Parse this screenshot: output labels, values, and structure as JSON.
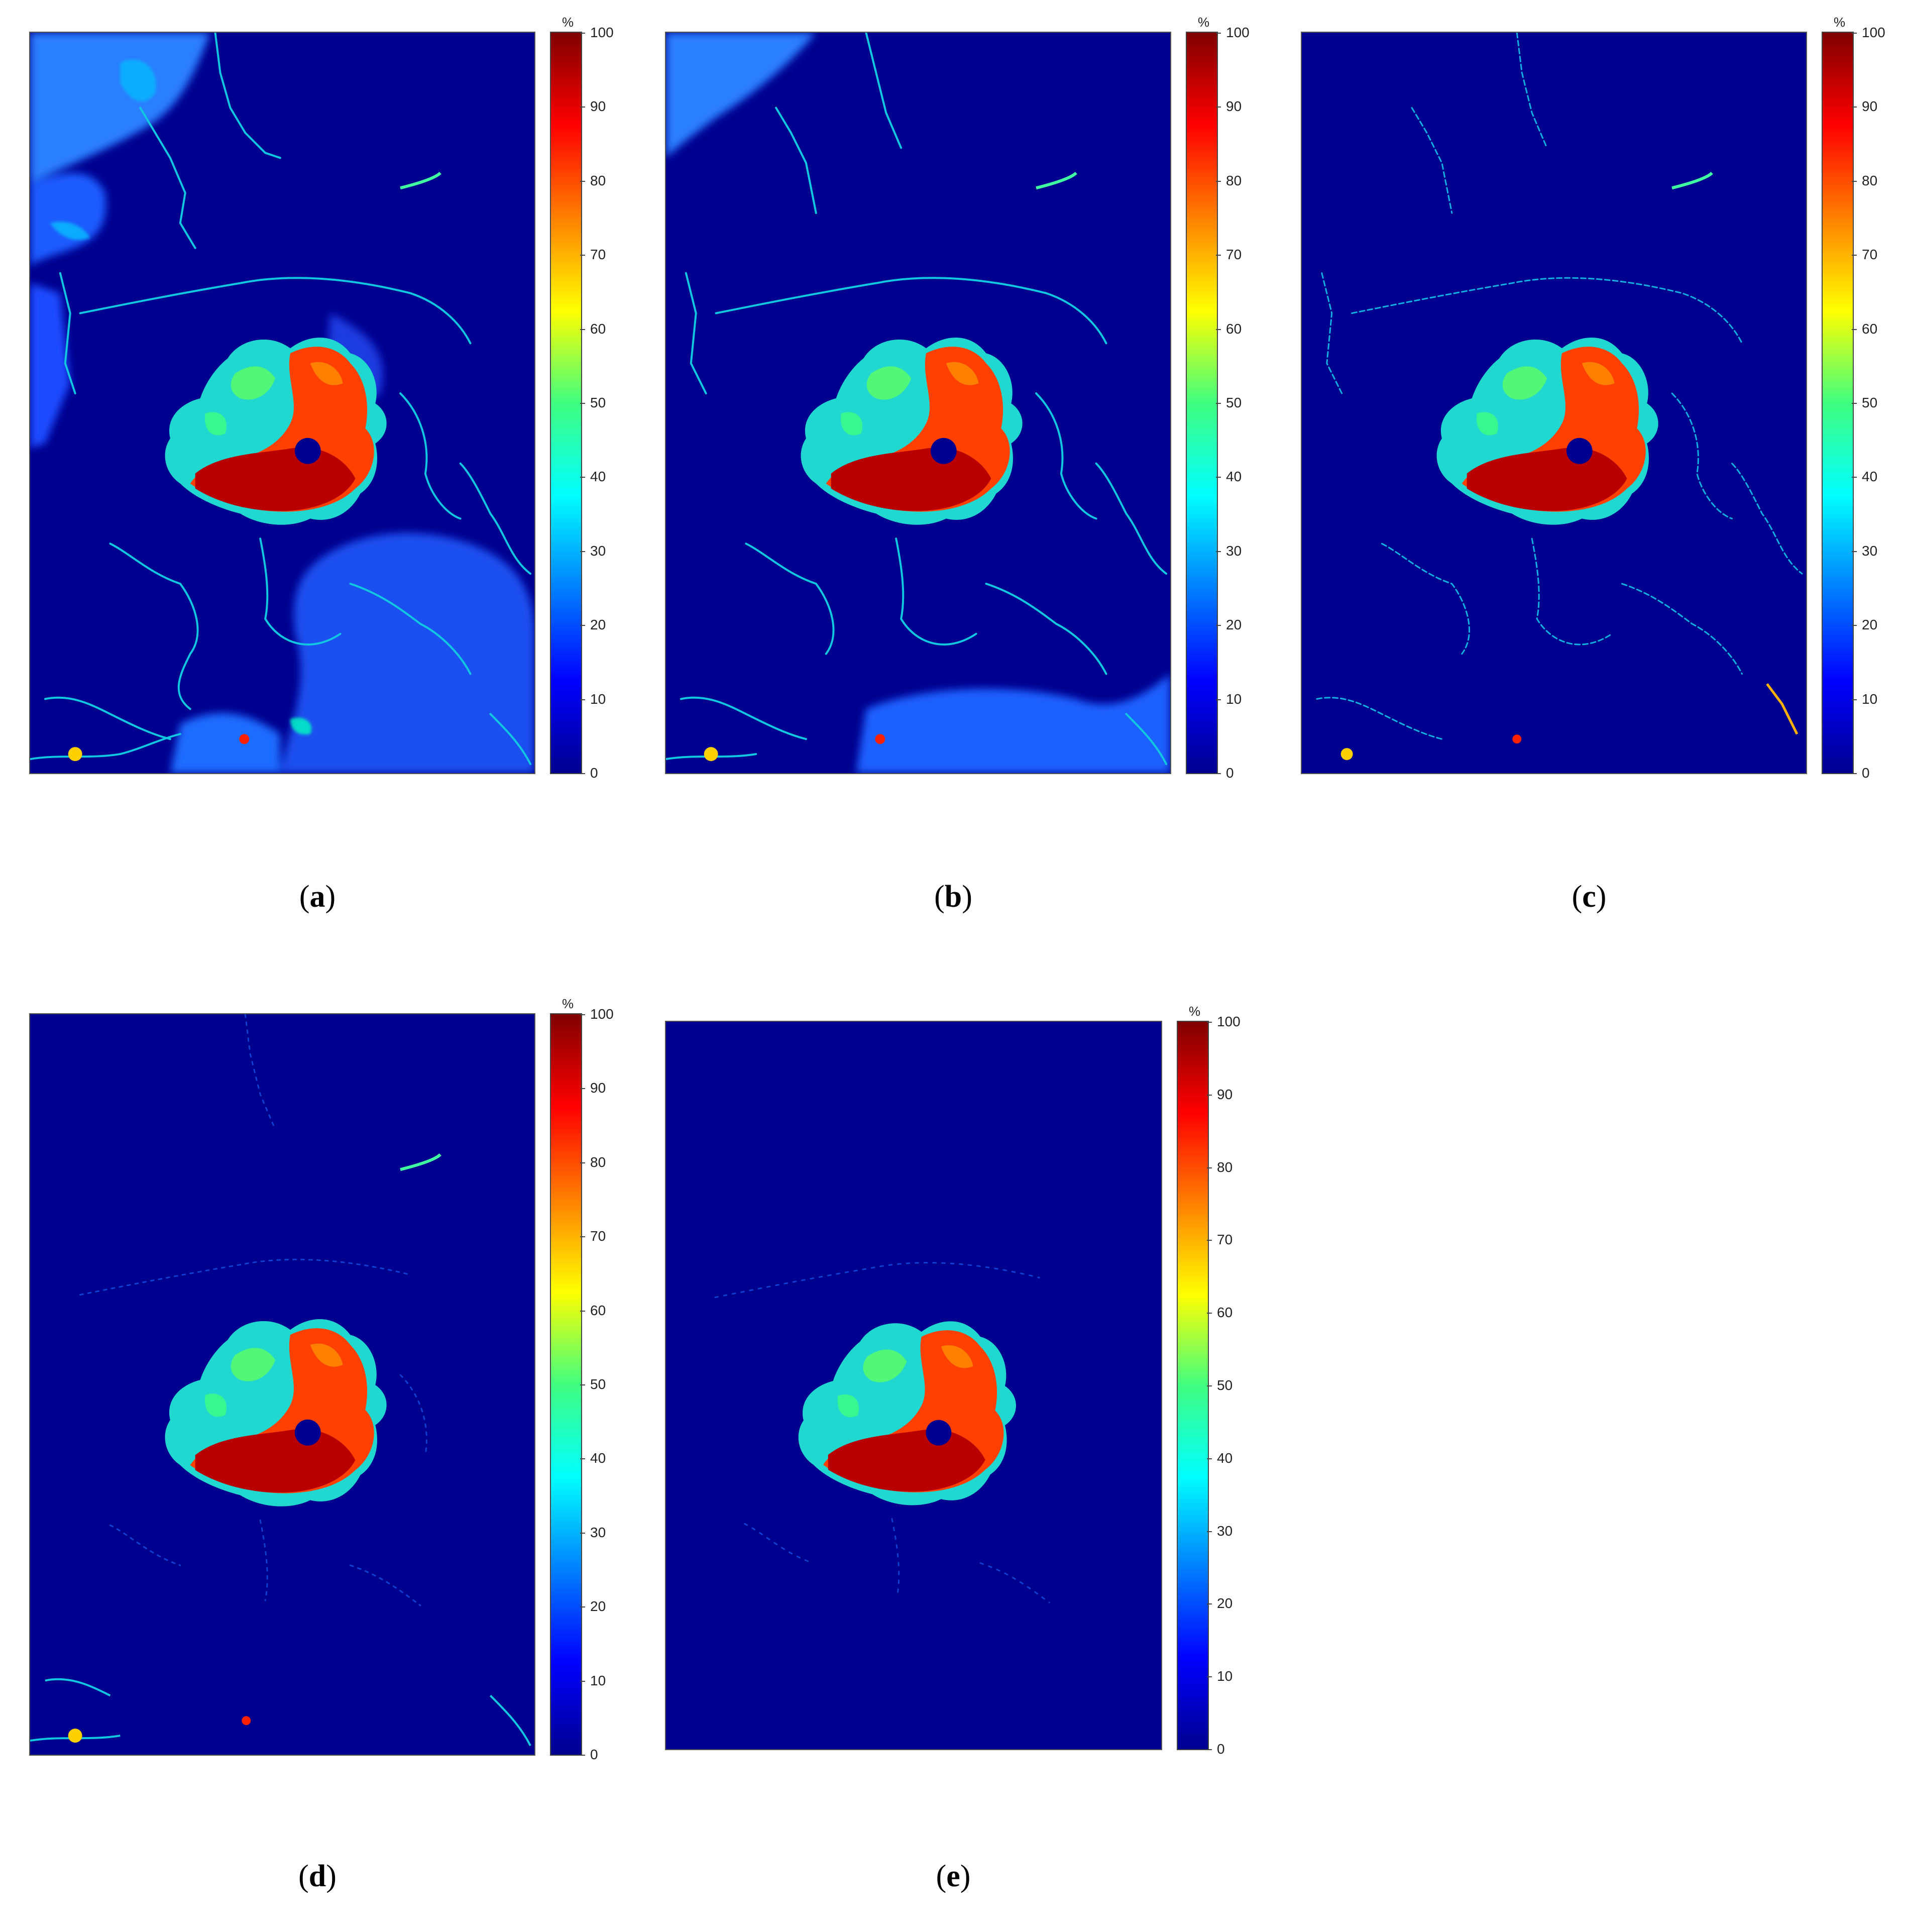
{
  "colorbar": {
    "unit": "%",
    "ticks": [
      "100",
      "90",
      "80",
      "70",
      "60",
      "50",
      "40",
      "30",
      "20",
      "10",
      "0"
    ],
    "range": [
      0,
      100
    ],
    "colormap": "jet",
    "colors": [
      "#00008f",
      "#0000ff",
      "#0080ff",
      "#00ffff",
      "#40ff80",
      "#ffff00",
      "#ff8000",
      "#ff0000",
      "#800000"
    ]
  },
  "panels": [
    {
      "id": "a",
      "open": "(",
      "letter": "a",
      "close": ")"
    },
    {
      "id": "b",
      "open": "(",
      "letter": "b",
      "close": ")"
    },
    {
      "id": "c",
      "open": "(",
      "letter": "c",
      "close": ")"
    },
    {
      "id": "d",
      "open": "(",
      "letter": "d",
      "close": ")"
    },
    {
      "id": "e",
      "open": "(",
      "letter": "e",
      "close": ")"
    }
  ],
  "colors": {
    "background_water": "#00008f",
    "ice_high": "#c00000",
    "ice_mid": "#ff8000",
    "ice_low": "#00e0d0"
  }
}
